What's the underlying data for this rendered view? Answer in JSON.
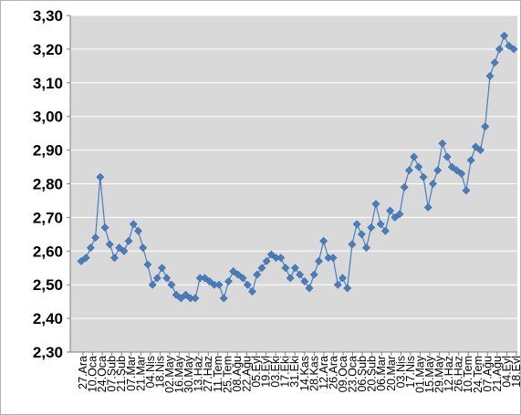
{
  "chart_data": {
    "type": "line",
    "title": "",
    "xlabel": "",
    "ylabel": "",
    "ylim": [
      2.3,
      3.3
    ],
    "y_ticks": [
      "2,30",
      "2,40",
      "2,50",
      "2,60",
      "2,70",
      "2,80",
      "2,90",
      "3,00",
      "3,10",
      "3,20",
      "3,30"
    ],
    "x_tick_labels": [
      "27.Ara",
      "10.Oca",
      "24.Oca",
      "07.Şub",
      "21.Şub",
      "07.Mar",
      "21.Mar",
      "04.Nis",
      "18.Nis",
      "02.May",
      "16.May",
      "30.May",
      "13.Haz",
      "27.Haz",
      "11.Tem",
      "25.Tem",
      "08.Ağu",
      "22.Ağu",
      "05.Eyl",
      "19.Eyl",
      "03.Eki",
      "17.Eki",
      "31.Eki",
      "14.Kas",
      "28.Kas",
      "12.Ara",
      "26.Ara",
      "09.Oca",
      "23.Oca",
      "06.Şub",
      "20.Şub",
      "06.Mar",
      "20.Mar",
      "03.Nis",
      "17.Nis",
      "01.May",
      "15.May",
      "29.May",
      "12.Haz",
      "26.Haz",
      "10.Tem",
      "24.Tem",
      "07.Ağu",
      "21.Ağu",
      "04.Eyl",
      "18.Eyl"
    ],
    "grid": true,
    "legend": "none",
    "series": [
      {
        "color": "#4a7ebb",
        "values": [
          2.57,
          2.58,
          2.61,
          2.64,
          2.82,
          2.67,
          2.62,
          2.58,
          2.61,
          2.6,
          2.63,
          2.68,
          2.66,
          2.61,
          2.56,
          2.5,
          2.52,
          2.55,
          2.52,
          2.5,
          2.47,
          2.46,
          2.47,
          2.46,
          2.46,
          2.52,
          2.52,
          2.51,
          2.5,
          2.5,
          2.46,
          2.51,
          2.54,
          2.53,
          2.52,
          2.5,
          2.48,
          2.53,
          2.55,
          2.57,
          2.59,
          2.58,
          2.58,
          2.55,
          2.52,
          2.55,
          2.53,
          2.51,
          2.49,
          2.53,
          2.57,
          2.63,
          2.58,
          2.58,
          2.5,
          2.52,
          2.49,
          2.62,
          2.68,
          2.65,
          2.61,
          2.67,
          2.74,
          2.68,
          2.66,
          2.72,
          2.7,
          2.71,
          2.79,
          2.84,
          2.88,
          2.85,
          2.82,
          2.73,
          2.8,
          2.84,
          2.92,
          2.88,
          2.85,
          2.84,
          2.83,
          2.78,
          2.87,
          2.91,
          2.9,
          2.97,
          3.12,
          3.16,
          3.2,
          3.24,
          3.21,
          3.2
        ]
      }
    ]
  }
}
